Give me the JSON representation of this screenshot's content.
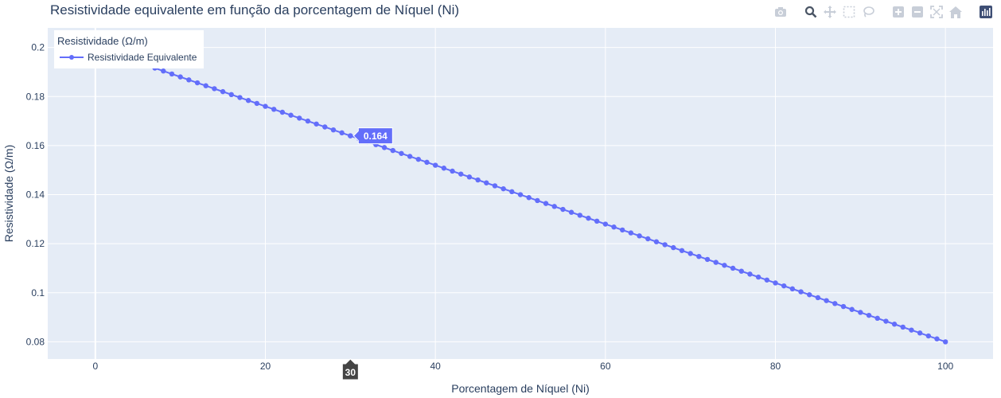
{
  "chart_data": {
    "type": "line",
    "title": "Resistividade equivalente em função da porcentagem de Níquel (Ni)",
    "xlabel": "Porcentagem de Níquel (Ni)",
    "ylabel": "Resistividade (Ω/m)",
    "xlim": [
      -5.6,
      105.6
    ],
    "ylim": [
      0.073,
      0.208
    ],
    "x_ticks": [
      0,
      20,
      40,
      60,
      80,
      100
    ],
    "y_ticks": [
      0.08,
      0.1,
      0.12,
      0.14,
      0.16,
      0.18,
      0.2
    ],
    "legend_title": "Resistividade (Ω/m)",
    "legend_position": "top-left",
    "grid": true,
    "series": [
      {
        "name": "Resistividade Equivalente",
        "color": "#636efa",
        "x": [
          0,
          1,
          2,
          3,
          4,
          5,
          6,
          7,
          8,
          9,
          10,
          11,
          12,
          13,
          14,
          15,
          16,
          17,
          18,
          19,
          20,
          21,
          22,
          23,
          24,
          25,
          26,
          27,
          28,
          29,
          30,
          31,
          32,
          33,
          34,
          35,
          36,
          37,
          38,
          39,
          40,
          41,
          42,
          43,
          44,
          45,
          46,
          47,
          48,
          49,
          50,
          51,
          52,
          53,
          54,
          55,
          56,
          57,
          58,
          59,
          60,
          61,
          62,
          63,
          64,
          65,
          66,
          67,
          68,
          69,
          70,
          71,
          72,
          73,
          74,
          75,
          76,
          77,
          78,
          79,
          80,
          81,
          82,
          83,
          84,
          85,
          86,
          87,
          88,
          89,
          90,
          91,
          92,
          93,
          94,
          95,
          96,
          97,
          98,
          99,
          100
        ],
        "y": [
          0.2,
          0.1988,
          0.1976,
          0.1964,
          0.1952,
          0.194,
          0.1928,
          0.1916,
          0.1904,
          0.1892,
          0.188,
          0.1868,
          0.1856,
          0.1844,
          0.1832,
          0.182,
          0.1808,
          0.1796,
          0.1784,
          0.1772,
          0.176,
          0.1748,
          0.1736,
          0.1724,
          0.1712,
          0.17,
          0.1688,
          0.1676,
          0.1664,
          0.1652,
          0.164,
          0.1628,
          0.1616,
          0.1604,
          0.1592,
          0.158,
          0.1568,
          0.1556,
          0.1544,
          0.1532,
          0.152,
          0.1508,
          0.1496,
          0.1484,
          0.1472,
          0.146,
          0.1448,
          0.1436,
          0.1424,
          0.1412,
          0.14,
          0.1388,
          0.1376,
          0.1364,
          0.1352,
          0.134,
          0.1328,
          0.1316,
          0.1304,
          0.1292,
          0.128,
          0.1268,
          0.1256,
          0.1244,
          0.1232,
          0.122,
          0.1208,
          0.1196,
          0.1184,
          0.1172,
          0.116,
          0.1148,
          0.1136,
          0.1124,
          0.1112,
          0.11,
          0.1088,
          0.1076,
          0.1064,
          0.1052,
          0.104,
          0.1028,
          0.1016,
          0.1004,
          0.0992,
          0.098,
          0.0968,
          0.0956,
          0.0944,
          0.0932,
          0.092,
          0.0908,
          0.0896,
          0.0884,
          0.0872,
          0.086,
          0.0848,
          0.0836,
          0.0824,
          0.0812,
          0.08
        ]
      }
    ],
    "hover": {
      "x": 30,
      "y_label": "0.164",
      "x_label": "30",
      "y": 0.164
    }
  },
  "modebar": {
    "icons": [
      "camera-icon",
      "zoom-icon",
      "pan-icon",
      "box-select-icon",
      "lasso-icon",
      "zoom-in-icon",
      "zoom-out-icon",
      "autoscale-icon",
      "reset-axes-icon",
      "plotly-logo-icon"
    ]
  }
}
